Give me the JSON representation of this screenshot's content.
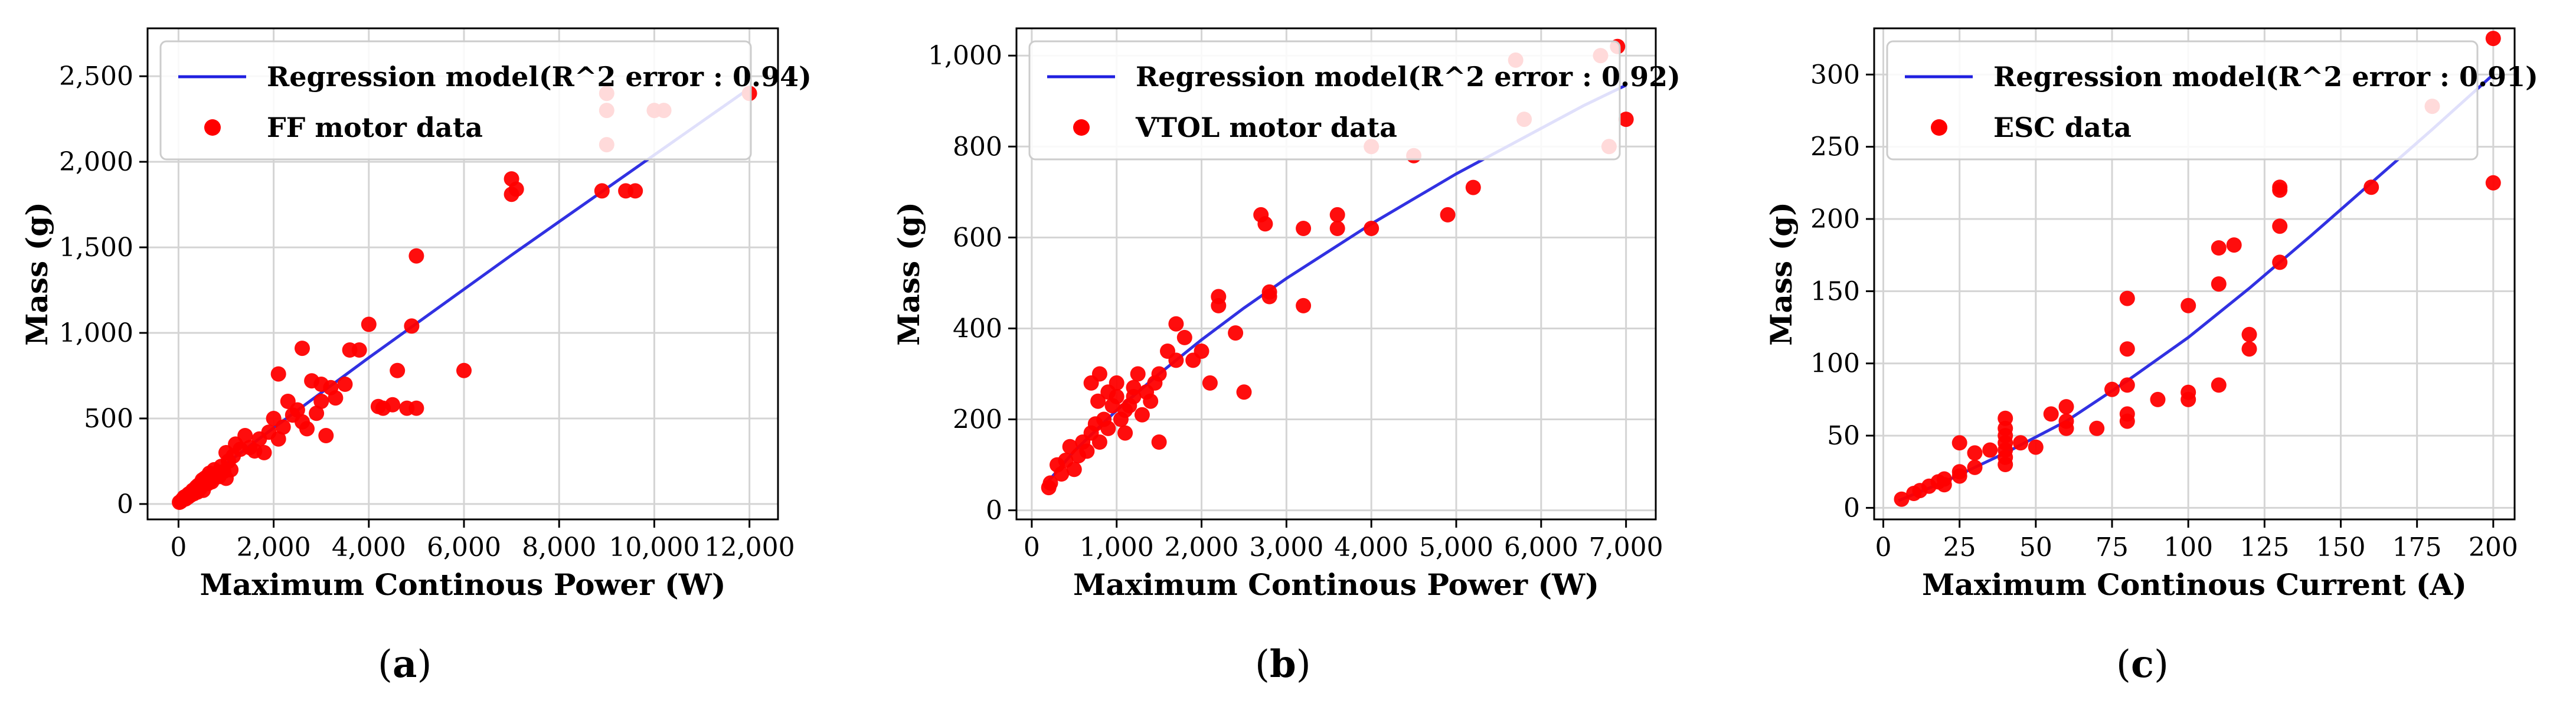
{
  "chart_data": [
    {
      "type": "scatter",
      "panel_label": "a",
      "xlabel": "Maximum Continous Power (W)",
      "ylabel": "Mass (g)",
      "xlim": [
        -650,
        12600
      ],
      "ylim": [
        -90,
        2780
      ],
      "xticks": [
        0,
        2000,
        4000,
        6000,
        8000,
        10000,
        12000
      ],
      "xtick_labels": [
        "0",
        "2,000",
        "4,000",
        "6,000",
        "8,000",
        "10,000",
        "12,000"
      ],
      "yticks": [
        0,
        500,
        1000,
        1500,
        2000,
        2500
      ],
      "ytick_labels": [
        "0",
        "500",
        "1,000",
        "1,500",
        "2,000",
        "2,500"
      ],
      "grid": true,
      "legend_position": "top-left",
      "series": [
        {
          "name": "Regression model(R^2 error : 0.94)",
          "kind": "line",
          "color": "#1f1fe0",
          "x": [
            0,
            1000,
            2000,
            3000,
            4000,
            5000,
            6000,
            7000,
            8000,
            9000,
            10000,
            11000,
            12000
          ],
          "y": [
            20,
            235,
            445,
            650,
            855,
            1055,
            1255,
            1455,
            1650,
            1845,
            2040,
            2235,
            2430
          ]
        },
        {
          "name": "FF motor data",
          "kind": "scatter",
          "color": "#ff0000",
          "x": [
            20,
            50,
            80,
            100,
            120,
            150,
            180,
            200,
            220,
            250,
            280,
            300,
            320,
            350,
            380,
            400,
            420,
            450,
            480,
            500,
            520,
            550,
            600,
            620,
            650,
            680,
            700,
            750,
            800,
            850,
            900,
            950,
            1000,
            1000,
            1050,
            1100,
            1150,
            1200,
            1300,
            1400,
            1500,
            1600,
            1700,
            1800,
            1900,
            2000,
            2100,
            2100,
            2200,
            2300,
            2400,
            2500,
            2600,
            2600,
            2700,
            2800,
            2900,
            3000,
            3000,
            3100,
            3200,
            3300,
            3500,
            3600,
            3800,
            4000,
            4200,
            4300,
            4500,
            4600,
            4800,
            4900,
            5000,
            5000,
            6000,
            7000,
            7000,
            7100,
            9000,
            9000,
            9000,
            9400,
            9600,
            8900,
            10000,
            10200,
            12000
          ],
          "y": [
            10,
            15,
            25,
            30,
            40,
            30,
            50,
            40,
            60,
            50,
            70,
            80,
            60,
            90,
            100,
            70,
            110,
            90,
            120,
            140,
            80,
            150,
            160,
            120,
            180,
            140,
            130,
            200,
            180,
            160,
            220,
            190,
            150,
            300,
            250,
            200,
            280,
            350,
            320,
            400,
            330,
            310,
            380,
            300,
            420,
            500,
            380,
            760,
            450,
            600,
            520,
            550,
            480,
            910,
            440,
            720,
            530,
            600,
            700,
            400,
            680,
            620,
            700,
            900,
            900,
            1050,
            570,
            560,
            580,
            780,
            560,
            1040,
            1450,
            560,
            780,
            1900,
            1810,
            1840,
            2300,
            2400,
            2100,
            1830,
            1830,
            1830,
            2300,
            2300,
            2400
          ]
        }
      ]
    },
    {
      "type": "scatter",
      "panel_label": "b",
      "xlabel": "Maximum Continous Power (W)",
      "ylabel": "Mass (g)",
      "xlim": [
        -180,
        7350
      ],
      "ylim": [
        -20,
        1060
      ],
      "xticks": [
        0,
        1000,
        2000,
        3000,
        4000,
        5000,
        6000,
        7000
      ],
      "xtick_labels": [
        "0",
        "1,000",
        "2,000",
        "3,000",
        "4,000",
        "5,000",
        "6,000",
        "7,000"
      ],
      "yticks": [
        0,
        200,
        400,
        600,
        800,
        1000
      ],
      "ytick_labels": [
        "0",
        "200",
        "400",
        "600",
        "800",
        "1,000"
      ],
      "grid": true,
      "legend_position": "top-left",
      "series": [
        {
          "name": "Regression model(R^2 error : 0.92)",
          "kind": "line",
          "color": "#1f1fe0",
          "x": [
            200,
            500,
            1000,
            1500,
            2000,
            2500,
            3000,
            3500,
            4000,
            4500,
            5000,
            5500,
            6000,
            6500,
            7000
          ],
          "y": [
            65,
            130,
            220,
            300,
            375,
            445,
            510,
            570,
            630,
            685,
            740,
            790,
            840,
            890,
            935
          ]
        },
        {
          "name": "VTOL motor data",
          "kind": "scatter",
          "color": "#ff0000",
          "x": [
            200,
            220,
            300,
            350,
            400,
            450,
            500,
            550,
            600,
            650,
            700,
            700,
            750,
            780,
            800,
            800,
            850,
            900,
            900,
            950,
            1000,
            1000,
            1050,
            1100,
            1100,
            1150,
            1200,
            1200,
            1250,
            1300,
            1350,
            1400,
            1450,
            1500,
            1500,
            1600,
            1700,
            1700,
            1800,
            1900,
            2000,
            2100,
            2200,
            2200,
            2400,
            2500,
            2700,
            2750,
            2800,
            2800,
            3200,
            3200,
            3600,
            3600,
            4000,
            4000,
            4500,
            4900,
            5200,
            5700,
            5800,
            6700,
            6800,
            6900,
            7000
          ],
          "y": [
            50,
            60,
            100,
            80,
            110,
            140,
            90,
            120,
            150,
            130,
            170,
            280,
            190,
            240,
            300,
            150,
            200,
            180,
            260,
            230,
            250,
            280,
            200,
            220,
            170,
            230,
            250,
            270,
            300,
            210,
            260,
            240,
            280,
            150,
            300,
            350,
            330,
            410,
            380,
            330,
            350,
            280,
            450,
            470,
            390,
            260,
            650,
            630,
            480,
            470,
            450,
            620,
            650,
            620,
            800,
            620,
            780,
            650,
            710,
            990,
            860,
            1000,
            800,
            1020,
            860
          ]
        }
      ]
    },
    {
      "type": "scatter",
      "panel_label": "c",
      "xlabel": "Maximum Continous Current (A)",
      "ylabel": "Mass (g)",
      "xlim": [
        -3,
        207
      ],
      "ylim": [
        -8,
        332
      ],
      "xticks": [
        0,
        25,
        50,
        75,
        100,
        125,
        150,
        175,
        200
      ],
      "xtick_labels": [
        "0",
        "25",
        "50",
        "75",
        "100",
        "125",
        "150",
        "175",
        "200"
      ],
      "yticks": [
        0,
        50,
        100,
        150,
        200,
        250,
        300
      ],
      "ytick_labels": [
        "0",
        "50",
        "100",
        "150",
        "200",
        "250",
        "300"
      ],
      "grid": true,
      "legend_position": "top-left",
      "series": [
        {
          "name": "Regression model(R^2 error : 0.91)",
          "kind": "line",
          "color": "#1f1fe0",
          "x": [
            5,
            20,
            40,
            60,
            80,
            100,
            120,
            140,
            160,
            180,
            200
          ],
          "y": [
            5,
            18,
            38,
            60,
            88,
            118,
            152,
            188,
            225,
            262,
            300
          ]
        },
        {
          "name": "ESC data",
          "kind": "scatter",
          "color": "#ff0000",
          "x": [
            6,
            10,
            12,
            15,
            18,
            20,
            20,
            25,
            25,
            25,
            30,
            30,
            35,
            40,
            40,
            40,
            40,
            40,
            40,
            40,
            45,
            50,
            55,
            60,
            60,
            60,
            70,
            75,
            80,
            80,
            80,
            80,
            80,
            90,
            100,
            100,
            100,
            110,
            110,
            110,
            115,
            120,
            120,
            130,
            130,
            130,
            130,
            160,
            180,
            200,
            200
          ],
          "y": [
            6,
            10,
            12,
            15,
            18,
            20,
            16,
            25,
            22,
            45,
            28,
            38,
            40,
            30,
            35,
            40,
            45,
            50,
            55,
            62,
            45,
            42,
            65,
            70,
            60,
            55,
            55,
            82,
            60,
            65,
            85,
            110,
            145,
            75,
            80,
            75,
            140,
            85,
            155,
            180,
            182,
            110,
            120,
            170,
            195,
            220,
            222,
            222,
            278,
            325,
            225
          ]
        }
      ]
    }
  ]
}
